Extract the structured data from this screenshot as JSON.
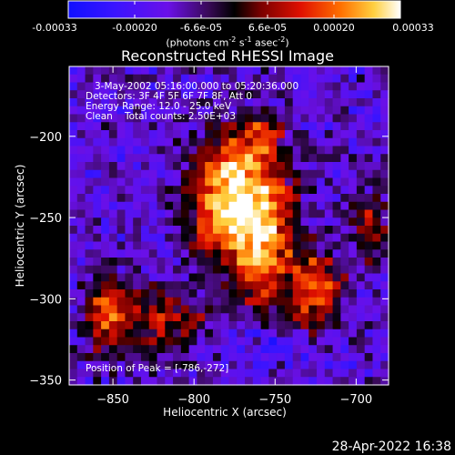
{
  "colorbar": {
    "ticks": [
      "-0.00033",
      "-0.00020",
      "-6.6e-05",
      "6.6e-05",
      "0.00020",
      "0.00033"
    ],
    "unit": "(photons cm",
    "unit_sup1": "-2",
    "unit_mid": " s",
    "unit_sup2": "-1",
    "unit_mid2": " asec",
    "unit_sup3": "-2",
    "unit_end": ")",
    "range": [
      -0.00033,
      0.00033
    ]
  },
  "chart_data": {
    "type": "heatmap",
    "title": "Reconstructed RHESSI Image",
    "xlabel": "Heliocentric X (arcsec)",
    "ylabel": "Heliocentric Y (arcsec)",
    "xlim": [
      -877,
      -680
    ],
    "ylim": [
      -353,
      -157
    ],
    "x_ticks": [
      -850,
      -800,
      -750,
      -700
    ],
    "y_ticks": [
      -200,
      -250,
      -300,
      -350
    ],
    "x_tick_labels": [
      "−850",
      "−800",
      "−750",
      "−700"
    ],
    "y_tick_labels": [
      "−200",
      "−250",
      "−300",
      "−350"
    ],
    "peak": [
      -786,
      -272
    ],
    "annotations": [
      "3-May-2002 05:16:00.000 to 05:20:36.000",
      "Detectors: 3F 4F 5F 6F 7F 8F, Att 0",
      "Energy Range: 12.0 - 25.0 keV",
      "Clean",
      "Total counts: 2.50E+03",
      "Position of Peak = [-786,-272]"
    ]
  },
  "colors": {
    "background": "#000000",
    "foreground": "#ffffff"
  },
  "footer": {
    "timestamp": "28-Apr-2022 16:38"
  }
}
